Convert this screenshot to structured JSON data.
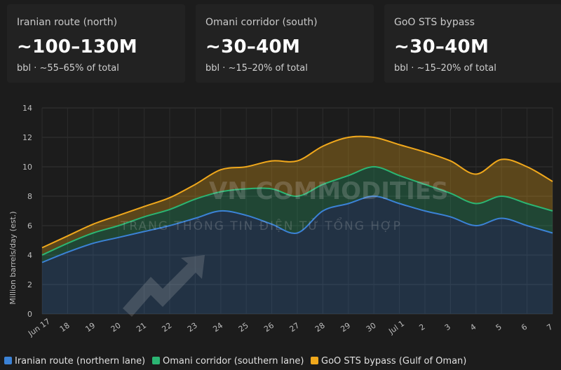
{
  "cards": [
    {
      "label": "Iranian route (north)",
      "value": "~100–130M",
      "sub": "bbl · ~55–65% of total"
    },
    {
      "label": "Omani corridor (south)",
      "value": "~30–40M",
      "sub": "bbl · ~15–20% of total"
    },
    {
      "label": "GoO STS bypass",
      "value": "~30–40M",
      "sub": "bbl · ~15–20% of total"
    }
  ],
  "watermark": {
    "line1": "VN COMMODITIES",
    "line2": "TRANG THÔNG TIN ĐIỆN TỬ TỔNG HỢP"
  },
  "colors": {
    "iranian": "#3b82d6",
    "omani": "#2bb573",
    "goo": "#f0a81c",
    "background": "#1c1c1c"
  },
  "chart_data": {
    "type": "area",
    "stacked": true,
    "ylabel": "Million barrels/day (est.)",
    "ylim": [
      0,
      14
    ],
    "yticks": [
      "0",
      "2",
      "4",
      "6",
      "8",
      "10",
      "12",
      "14"
    ],
    "grid": true,
    "legend_position": "bottom",
    "categories": [
      "Jun 17",
      "18",
      "19",
      "20",
      "21",
      "22",
      "23",
      "24",
      "25",
      "26",
      "27",
      "28",
      "29",
      "30",
      "Jul 1",
      "2",
      "3",
      "4",
      "5",
      "6",
      "7"
    ],
    "series": [
      {
        "name": "Iranian route (northern lane)",
        "values": [
          3.5,
          4.2,
          4.8,
          5.2,
          5.6,
          6.0,
          6.5,
          7.0,
          6.7,
          6.1,
          5.5,
          7.0,
          7.5,
          8.0,
          7.5,
          7.0,
          6.6,
          6.0,
          6.5,
          6.0,
          5.5
        ]
      },
      {
        "name": "Omani corridor (southern lane)",
        "values": [
          0.5,
          0.6,
          0.7,
          0.8,
          1.0,
          1.1,
          1.3,
          1.3,
          1.8,
          2.4,
          2.5,
          1.8,
          1.9,
          2.0,
          1.9,
          1.8,
          1.6,
          1.5,
          1.5,
          1.5,
          1.5
        ]
      },
      {
        "name": "GoO STS bypass (Gulf of Oman)",
        "values": [
          0.5,
          0.5,
          0.6,
          0.7,
          0.7,
          0.8,
          1.0,
          1.5,
          1.5,
          1.9,
          2.4,
          2.6,
          2.6,
          2.0,
          2.1,
          2.2,
          2.2,
          2.0,
          2.5,
          2.5,
          2.0
        ]
      }
    ]
  }
}
